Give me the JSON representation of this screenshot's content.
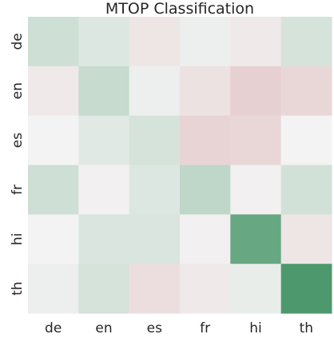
{
  "chart_data": {
    "type": "heatmap",
    "title": "MTOP Classification",
    "xlabel": "",
    "ylabel": "",
    "x_categories": [
      "de",
      "en",
      "es",
      "fr",
      "hi",
      "th"
    ],
    "y_categories": [
      "de",
      "en",
      "es",
      "fr",
      "hi",
      "th"
    ],
    "values": [
      [
        0.1,
        0.06,
        -0.04,
        0.02,
        -0.03,
        0.08
      ],
      [
        -0.03,
        0.12,
        0.02,
        -0.05,
        -0.1,
        -0.08
      ],
      [
        0.0,
        0.05,
        0.08,
        -0.09,
        -0.08,
        0.0
      ],
      [
        0.1,
        -0.01,
        0.06,
        0.14,
        -0.01,
        0.09
      ],
      [
        0.0,
        0.07,
        0.07,
        -0.01,
        0.38,
        -0.04
      ],
      [
        0.02,
        0.08,
        -0.06,
        -0.03,
        0.03,
        0.45
      ]
    ],
    "vmin": -0.5,
    "vmax": 0.5,
    "colormap": {
      "negative": "#b5454a",
      "neutral": "#f3f3f3",
      "positive": "#3b8f5e"
    },
    "colorbar": false,
    "grid": false
  }
}
